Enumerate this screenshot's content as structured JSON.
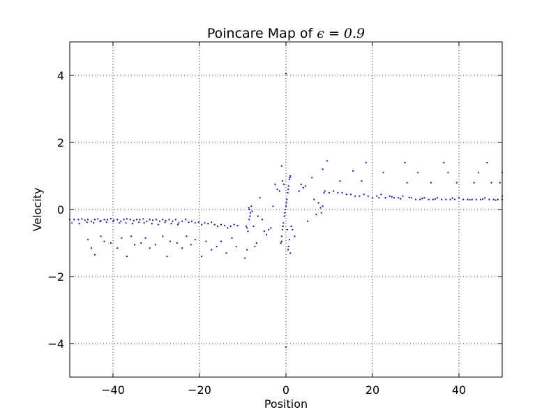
{
  "chart_data": {
    "type": "scatter",
    "title_prefix": "Poincare Map of ",
    "title_math": "ϵ = 0.9",
    "xlabel": "Position",
    "ylabel": "Velocity",
    "xlim": [
      -50,
      50
    ],
    "ylim": [
      -5,
      5
    ],
    "xticks": [
      -40,
      -20,
      0,
      20,
      40
    ],
    "xtick_labels": [
      "−40",
      "−20",
      "0",
      "20",
      "40"
    ],
    "yticks": [
      -4,
      -2,
      0,
      2,
      4
    ],
    "ytick_labels": [
      "−4",
      "−2",
      "0",
      "2",
      "4"
    ],
    "grid": true,
    "marker_color": "#0000ff",
    "series": [
      {
        "points": [
          [
            -50,
            -0.3
          ],
          [
            -49,
            -0.3
          ],
          [
            -48,
            -0.3
          ],
          [
            -47.2,
            -0.28
          ],
          [
            -46.5,
            -0.32
          ],
          [
            -45.8,
            -0.3
          ],
          [
            -45,
            -0.35
          ],
          [
            -44.2,
            -0.3
          ],
          [
            -43.5,
            -0.28
          ],
          [
            -42.8,
            -0.33
          ],
          [
            -42,
            -0.3
          ],
          [
            -41.3,
            -0.3
          ],
          [
            -40.5,
            -0.27
          ],
          [
            -39.8,
            -0.32
          ],
          [
            -39,
            -0.3
          ],
          [
            -38.2,
            -0.35
          ],
          [
            -37.5,
            -0.3
          ],
          [
            -36.8,
            -0.28
          ],
          [
            -36,
            -0.3
          ],
          [
            -35.2,
            -0.33
          ],
          [
            -34.5,
            -0.3
          ],
          [
            -33.8,
            -0.3
          ],
          [
            -33,
            -0.28
          ],
          [
            -32.2,
            -0.35
          ],
          [
            -31.5,
            -0.3
          ],
          [
            -30.8,
            -0.32
          ],
          [
            -30,
            -0.3
          ],
          [
            -29.2,
            -0.35
          ],
          [
            -28.5,
            -0.3
          ],
          [
            -27.8,
            -0.33
          ],
          [
            -27,
            -0.3
          ],
          [
            -26.2,
            -0.35
          ],
          [
            -25.5,
            -0.3
          ],
          [
            -24.8,
            -0.4
          ],
          [
            -24,
            -0.35
          ],
          [
            -23.2,
            -0.3
          ],
          [
            -22.5,
            -0.38
          ],
          [
            -21.8,
            -0.35
          ],
          [
            -21,
            -0.4
          ],
          [
            -20.2,
            -0.38
          ],
          [
            -19.5,
            -0.45
          ],
          [
            -18.8,
            -0.4
          ],
          [
            -18,
            -0.42
          ],
          [
            -17.2,
            -0.38
          ],
          [
            -16.5,
            -0.45
          ],
          [
            -15.8,
            -0.5
          ],
          [
            -15,
            -0.45
          ],
          [
            -14.2,
            -0.48
          ],
          [
            -13.5,
            -0.55
          ],
          [
            -12.8,
            -0.5
          ],
          [
            -12,
            -0.45
          ],
          [
            -11.2,
            -0.48
          ],
          [
            -45.8,
            -0.9
          ],
          [
            -45,
            -1.15
          ],
          [
            -44.2,
            -1.35
          ],
          [
            -42.8,
            -0.8
          ],
          [
            -42,
            -0.95
          ],
          [
            -40.5,
            -1
          ],
          [
            -39,
            -1.15
          ],
          [
            -38,
            -0.85
          ],
          [
            -36.8,
            -1.4
          ],
          [
            -35.8,
            -0.8
          ],
          [
            -35,
            -1.05
          ],
          [
            -33.5,
            -1
          ],
          [
            -32.5,
            -0.85
          ],
          [
            -31.5,
            -1.15
          ],
          [
            -30.2,
            -1.05
          ],
          [
            -28.5,
            -0.8
          ],
          [
            -27.5,
            -1.4
          ],
          [
            -26.8,
            -0.95
          ],
          [
            -25.2,
            -1
          ],
          [
            -24,
            -1.15
          ],
          [
            -23,
            -0.8
          ],
          [
            -22,
            -1.05
          ],
          [
            -21,
            -0.9
          ],
          [
            -19.5,
            -1.4
          ],
          [
            -18.5,
            -0.95
          ],
          [
            -17.2,
            -1.2
          ],
          [
            -16,
            -1.1
          ],
          [
            -15,
            -0.95
          ],
          [
            -13.8,
            -1.3
          ],
          [
            -12.5,
            -0.85
          ],
          [
            -11.5,
            -1.1
          ],
          [
            -9.5,
            -1.45
          ],
          [
            -9,
            -1.2
          ],
          [
            -8.5,
            -0.3
          ],
          [
            -8.2,
            -0.1
          ],
          [
            -8,
            0.1
          ],
          [
            -7.8,
            -0.05
          ],
          [
            -7.5,
            -0.5
          ],
          [
            -7.2,
            -1.1
          ],
          [
            -6.8,
            -1
          ],
          [
            -6.5,
            -0.2
          ],
          [
            -6,
            0.35
          ],
          [
            -5.5,
            -0.3
          ],
          [
            -5,
            -0.65
          ],
          [
            -4.5,
            -0.75
          ],
          [
            -4,
            -0.6
          ],
          [
            -3.5,
            -0.55
          ],
          [
            -3,
            0.1
          ],
          [
            -2.5,
            0.75
          ],
          [
            -2,
            0.6
          ],
          [
            -1.5,
            0.55
          ],
          [
            -1,
            1.3
          ],
          [
            -0.8,
            0.85
          ],
          [
            -0.5,
            0.75
          ],
          [
            -9.2,
            -0.5
          ],
          [
            -8.8,
            -0.65
          ],
          [
            -8.5,
            0
          ],
          [
            -9,
            -0.55
          ],
          [
            -8.6,
            0.05
          ],
          [
            -8.3,
            -0.2
          ],
          [
            -1.2,
            -1
          ],
          [
            -1,
            -0.8
          ],
          [
            -0.8,
            -0.6
          ],
          [
            -0.6,
            -0.4
          ],
          [
            -0.4,
            -0.2
          ],
          [
            -0.2,
            0
          ],
          [
            0,
            0.1
          ],
          [
            0.2,
            0.3
          ],
          [
            0.4,
            0.5
          ],
          [
            0.6,
            0.7
          ],
          [
            0.8,
            0.9
          ],
          [
            1,
            1
          ],
          [
            -1,
            -0.95
          ],
          [
            -0.7,
            -0.5
          ],
          [
            -0.3,
            -0.1
          ],
          [
            0.1,
            0.2
          ],
          [
            0.5,
            0.6
          ],
          [
            0.9,
            0.95
          ],
          [
            0,
            4.05
          ],
          [
            0,
            -4.1
          ],
          [
            0.5,
            -1.2
          ],
          [
            0.8,
            -0.9
          ],
          [
            1.2,
            -0.5
          ],
          [
            1.5,
            -0.6
          ],
          [
            2,
            -0.8
          ],
          [
            1,
            -1.3
          ],
          [
            0.3,
            -0.6
          ],
          [
            0.6,
            -1.1
          ],
          [
            3,
            0.55
          ],
          [
            3.5,
            0.75
          ],
          [
            4,
            0.65
          ],
          [
            4.5,
            0.7
          ],
          [
            5,
            -0.35
          ],
          [
            6,
            0.95
          ],
          [
            6.5,
            0.3
          ],
          [
            7,
            -0.15
          ],
          [
            7.5,
            0.2
          ],
          [
            8,
            0.05
          ],
          [
            8.2,
            -0.1
          ],
          [
            8.5,
            0.1
          ],
          [
            8.8,
            0.5
          ],
          [
            9,
            0.55
          ],
          [
            9.5,
            1.45
          ],
          [
            8.5,
            1.2
          ],
          [
            10,
            0.5
          ],
          [
            11,
            0.55
          ],
          [
            12,
            0.5
          ],
          [
            12.5,
            0.85
          ],
          [
            13,
            0.5
          ],
          [
            14,
            0.45
          ],
          [
            15,
            0.45
          ],
          [
            15.5,
            1.15
          ],
          [
            16,
            0.4
          ],
          [
            17,
            0.4
          ],
          [
            17.5,
            0.85
          ],
          [
            18,
            0.45
          ],
          [
            18.5,
            1.4
          ],
          [
            19,
            0.4
          ],
          [
            20,
            0.35
          ],
          [
            21,
            0.4
          ],
          [
            21.5,
            0.35
          ],
          [
            22,
            0.45
          ],
          [
            22.5,
            1.1
          ],
          [
            23,
            0.35
          ],
          [
            24,
            0.4
          ],
          [
            25,
            0.35
          ],
          [
            26,
            0.35
          ],
          [
            27,
            0.4
          ],
          [
            27.5,
            1.4
          ],
          [
            28,
            0.8
          ],
          [
            29,
            0.35
          ],
          [
            30,
            0.3
          ],
          [
            30.5,
            1.1
          ],
          [
            31,
            0.3
          ],
          [
            32,
            0.35
          ],
          [
            33,
            0.3
          ],
          [
            33.5,
            0.8
          ],
          [
            34,
            0.3
          ],
          [
            35,
            0.35
          ],
          [
            36,
            0.3
          ],
          [
            36.5,
            1.4
          ],
          [
            37,
            0.3
          ],
          [
            37.5,
            1.1
          ],
          [
            38,
            0.3
          ],
          [
            39,
            0.3
          ],
          [
            39.5,
            0.8
          ],
          [
            40,
            0.35
          ],
          [
            41,
            0.3
          ],
          [
            42,
            0.3
          ],
          [
            43,
            0.3
          ],
          [
            43.5,
            0.8
          ],
          [
            44,
            0.3
          ],
          [
            44.5,
            1.1
          ],
          [
            45,
            0.3
          ],
          [
            46,
            0.35
          ],
          [
            46.5,
            1.4
          ],
          [
            47,
            0.3
          ],
          [
            47.5,
            0.8
          ],
          [
            48,
            0.3
          ],
          [
            49,
            0.3
          ],
          [
            49.5,
            0.8
          ],
          [
            50,
            0.3
          ],
          [
            50,
            1.1
          ],
          [
            50,
            0.4
          ],
          [
            23,
            0.35
          ],
          [
            24.5,
            0.38
          ],
          [
            26.5,
            0.32
          ],
          [
            28.5,
            0.36
          ],
          [
            31.5,
            0.33
          ],
          [
            34.5,
            0.31
          ],
          [
            38.5,
            0.34
          ],
          [
            42.5,
            0.29
          ],
          [
            45.5,
            0.31
          ],
          [
            48.5,
            0.28
          ],
          [
            -49.5,
            -0.4
          ],
          [
            -47.8,
            -0.42
          ],
          [
            -46,
            -0.38
          ],
          [
            -44.5,
            -0.4
          ],
          [
            -43,
            -0.36
          ],
          [
            -41.5,
            -0.38
          ],
          [
            -40,
            -0.35
          ],
          [
            -38.5,
            -0.4
          ],
          [
            -37,
            -0.4
          ],
          [
            -35.5,
            -0.42
          ],
          [
            -34,
            -0.38
          ],
          [
            -32.8,
            -0.4
          ],
          [
            -31,
            -0.42
          ],
          [
            -29.5,
            -0.45
          ],
          [
            -28,
            -0.38
          ],
          [
            -26.5,
            -0.42
          ],
          [
            -25,
            -0.45
          ]
        ]
      }
    ]
  }
}
